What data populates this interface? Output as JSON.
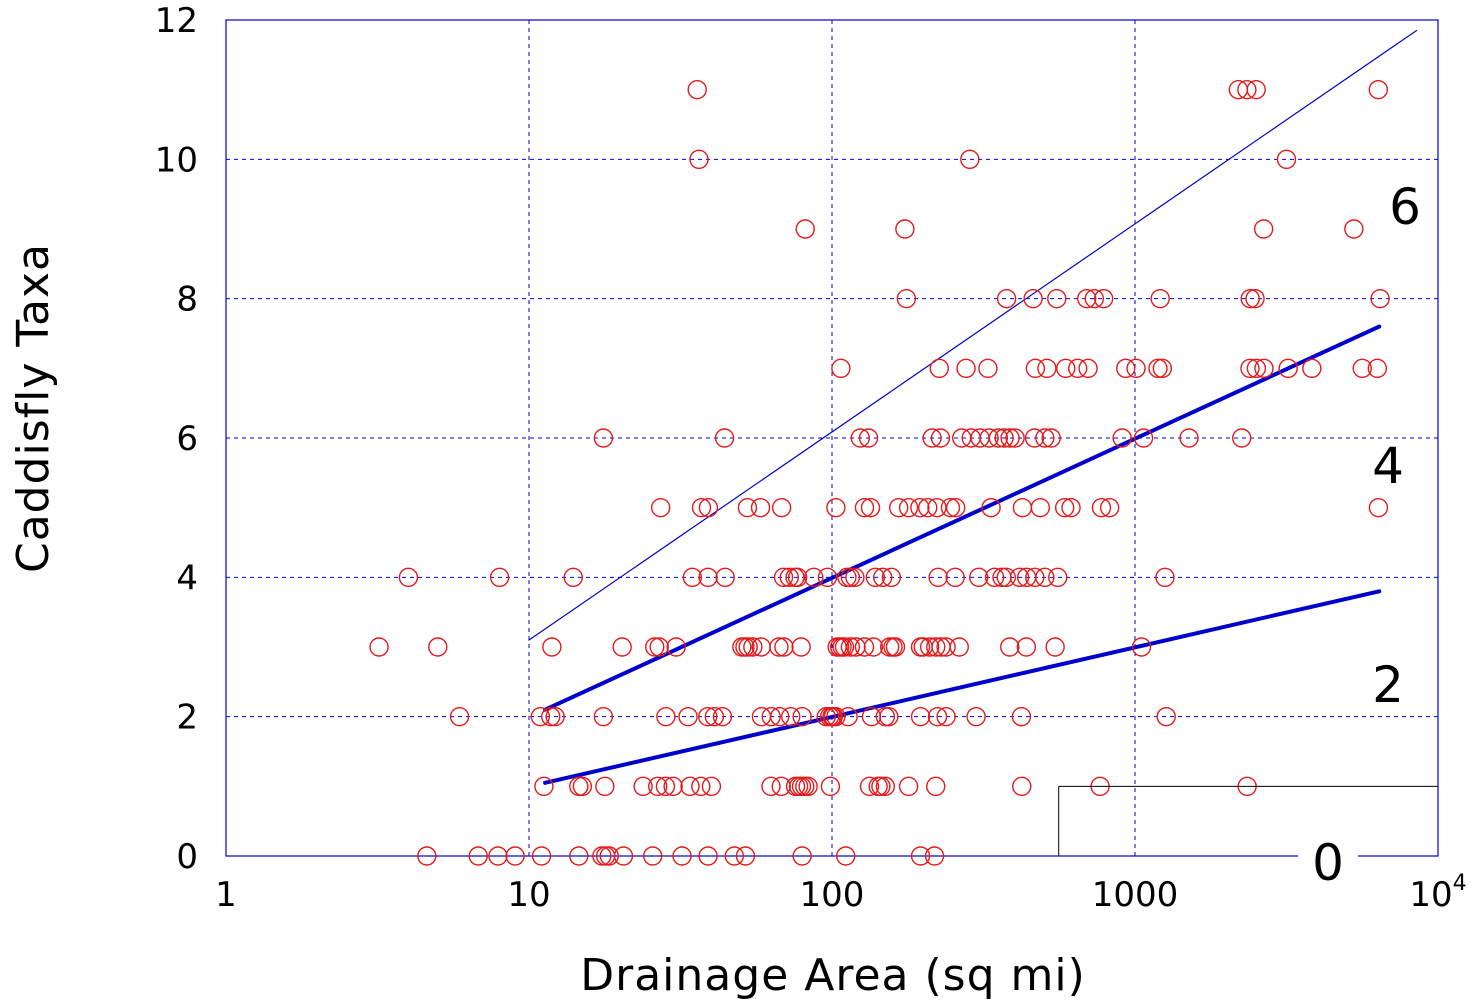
{
  "chart_data": {
    "type": "scatter",
    "xlabel": "Drainage Area (sq mi)",
    "ylabel": "Caddisfly Taxa",
    "x_scale": "log",
    "xlim": [
      1,
      10000
    ],
    "ylim": [
      0,
      12
    ],
    "x_ticks": [
      {
        "value": 1,
        "label": "1",
        "sup": ""
      },
      {
        "value": 10,
        "label": "10",
        "sup": ""
      },
      {
        "value": 100,
        "label": "100",
        "sup": ""
      },
      {
        "value": 1000,
        "label": "1000",
        "sup": ""
      },
      {
        "value": 10000,
        "label": "10",
        "sup": "4"
      }
    ],
    "y_ticks": [
      0,
      2,
      4,
      6,
      8,
      10,
      12
    ],
    "grid": true,
    "colors": {
      "points": "#e41a1c",
      "lines": "#0000cc",
      "grid": "#0000cc",
      "frame": "#0000cc"
    },
    "series": [
      {
        "marker": "open-circle",
        "points": [
          [
            4.6,
            0
          ],
          [
            6.8,
            0
          ],
          [
            7.9,
            0
          ],
          [
            9.0,
            0
          ],
          [
            11.0,
            0
          ],
          [
            14.6,
            0
          ],
          [
            17.4,
            0
          ],
          [
            17.9,
            0
          ],
          [
            18.4,
            0
          ],
          [
            20.5,
            0
          ],
          [
            25.6,
            0
          ],
          [
            32.0,
            0
          ],
          [
            39.0,
            0
          ],
          [
            47.6,
            0
          ],
          [
            51.8,
            0
          ],
          [
            79.7,
            0
          ],
          [
            111,
            0
          ],
          [
            196,
            0
          ],
          [
            218,
            0
          ],
          [
            11.2,
            1
          ],
          [
            14.6,
            1
          ],
          [
            15.0,
            1
          ],
          [
            17.8,
            1
          ],
          [
            23.8,
            1
          ],
          [
            26.6,
            1
          ],
          [
            28.2,
            1
          ],
          [
            29.9,
            1
          ],
          [
            34.0,
            1
          ],
          [
            36.9,
            1
          ],
          [
            40.0,
            1
          ],
          [
            62.9,
            1
          ],
          [
            68.0,
            1
          ],
          [
            75.8,
            1
          ],
          [
            77.6,
            1
          ],
          [
            79.3,
            1
          ],
          [
            81.3,
            1
          ],
          [
            83.4,
            1
          ],
          [
            98.8,
            1
          ],
          [
            133,
            1
          ],
          [
            142,
            1
          ],
          [
            145,
            1
          ],
          [
            150,
            1
          ],
          [
            179,
            1
          ],
          [
            220,
            1
          ],
          [
            423,
            1
          ],
          [
            767,
            1
          ],
          [
            2345,
            1
          ],
          [
            5.9,
            2
          ],
          [
            10.9,
            2
          ],
          [
            11.8,
            2
          ],
          [
            12.2,
            2
          ],
          [
            17.6,
            2
          ],
          [
            28.3,
            2
          ],
          [
            33.5,
            2
          ],
          [
            38.9,
            2
          ],
          [
            40.9,
            2
          ],
          [
            43.5,
            2
          ],
          [
            58.5,
            2
          ],
          [
            63.0,
            2
          ],
          [
            67.2,
            2
          ],
          [
            73.1,
            2
          ],
          [
            79.7,
            2
          ],
          [
            95.7,
            2
          ],
          [
            98.2,
            2
          ],
          [
            100,
            2
          ],
          [
            101,
            2
          ],
          [
            103,
            2
          ],
          [
            113,
            2
          ],
          [
            135,
            2
          ],
          [
            150,
            2
          ],
          [
            154,
            2
          ],
          [
            196,
            2
          ],
          [
            223,
            2
          ],
          [
            238,
            2
          ],
          [
            299,
            2
          ],
          [
            422,
            2
          ],
          [
            1268,
            2
          ],
          [
            3.2,
            3
          ],
          [
            5.0,
            3
          ],
          [
            11.9,
            3
          ],
          [
            20.3,
            3
          ],
          [
            26.0,
            3
          ],
          [
            26.9,
            3
          ],
          [
            30.6,
            3
          ],
          [
            50.4,
            3
          ],
          [
            51.6,
            3
          ],
          [
            52.9,
            3
          ],
          [
            54.8,
            3
          ],
          [
            58.4,
            3
          ],
          [
            66.8,
            3
          ],
          [
            69.4,
            3
          ],
          [
            79.1,
            3
          ],
          [
            104,
            3
          ],
          [
            106,
            3
          ],
          [
            108,
            3
          ],
          [
            110,
            3
          ],
          [
            115,
            3
          ],
          [
            120,
            3
          ],
          [
            128,
            3
          ],
          [
            137,
            3
          ],
          [
            155,
            3
          ],
          [
            159,
            3
          ],
          [
            162,
            3
          ],
          [
            196,
            3
          ],
          [
            200,
            3
          ],
          [
            210,
            3
          ],
          [
            220,
            3
          ],
          [
            229,
            3
          ],
          [
            238,
            3
          ],
          [
            263,
            3
          ],
          [
            386,
            3
          ],
          [
            438,
            3
          ],
          [
            545,
            3
          ],
          [
            1051,
            3
          ],
          [
            4.0,
            4
          ],
          [
            8.0,
            4
          ],
          [
            14.0,
            4
          ],
          [
            34.6,
            4
          ],
          [
            39.0,
            4
          ],
          [
            44.4,
            4
          ],
          [
            69.2,
            4
          ],
          [
            72.3,
            4
          ],
          [
            75.5,
            4
          ],
          [
            77.0,
            4
          ],
          [
            87.1,
            4
          ],
          [
            96.6,
            4
          ],
          [
            112,
            4
          ],
          [
            115,
            4
          ],
          [
            119,
            4
          ],
          [
            139,
            4
          ],
          [
            147,
            4
          ],
          [
            157,
            4
          ],
          [
            224,
            4
          ],
          [
            255,
            4
          ],
          [
            305,
            4
          ],
          [
            344,
            4
          ],
          [
            364,
            4
          ],
          [
            376,
            4
          ],
          [
            416,
            4
          ],
          [
            439,
            4
          ],
          [
            467,
            4
          ],
          [
            504,
            4
          ],
          [
            556,
            4
          ],
          [
            1256,
            4
          ],
          [
            27.2,
            5
          ],
          [
            37.1,
            5
          ],
          [
            39.1,
            5
          ],
          [
            52.6,
            5
          ],
          [
            58.1,
            5
          ],
          [
            68.2,
            5
          ],
          [
            103,
            5
          ],
          [
            128,
            5
          ],
          [
            134,
            5
          ],
          [
            166,
            5
          ],
          [
            179,
            5
          ],
          [
            195,
            5
          ],
          [
            207,
            5
          ],
          [
            222,
            5
          ],
          [
            246,
            5
          ],
          [
            256,
            5
          ],
          [
            335,
            5
          ],
          [
            425,
            5
          ],
          [
            487,
            5
          ],
          [
            586,
            5
          ],
          [
            615,
            5
          ],
          [
            775,
            5
          ],
          [
            825,
            5
          ],
          [
            6359,
            5
          ],
          [
            17.6,
            6
          ],
          [
            44.2,
            6
          ],
          [
            124,
            6
          ],
          [
            132,
            6
          ],
          [
            214,
            6
          ],
          [
            228,
            6
          ],
          [
            268,
            6
          ],
          [
            288,
            6
          ],
          [
            308,
            6
          ],
          [
            330,
            6
          ],
          [
            354,
            6
          ],
          [
            370,
            6
          ],
          [
            387,
            6
          ],
          [
            402,
            6
          ],
          [
            466,
            6
          ],
          [
            504,
            6
          ],
          [
            529,
            6
          ],
          [
            907,
            6
          ],
          [
            1067,
            6
          ],
          [
            1508,
            6
          ],
          [
            2250,
            6
          ],
          [
            107,
            7
          ],
          [
            226,
            7
          ],
          [
            277,
            7
          ],
          [
            327,
            7
          ],
          [
            469,
            7
          ],
          [
            512,
            7
          ],
          [
            591,
            7
          ],
          [
            647,
            7
          ],
          [
            700,
            7
          ],
          [
            932,
            7
          ],
          [
            1008,
            7
          ],
          [
            1191,
            7
          ],
          [
            1231,
            7
          ],
          [
            2396,
            7
          ],
          [
            2515,
            7
          ],
          [
            2665,
            7
          ],
          [
            3203,
            7
          ],
          [
            3834,
            7
          ],
          [
            5623,
            7
          ],
          [
            6307,
            7
          ],
          [
            176,
            8
          ],
          [
            377,
            8
          ],
          [
            461,
            8
          ],
          [
            552,
            8
          ],
          [
            693,
            8
          ],
          [
            734,
            8
          ],
          [
            788,
            8
          ],
          [
            1211,
            8
          ],
          [
            2400,
            8
          ],
          [
            2490,
            8
          ],
          [
            6442,
            8
          ],
          [
            81.6,
            9
          ],
          [
            174,
            9
          ],
          [
            2658,
            9
          ],
          [
            5276,
            9
          ],
          [
            285,
            10
          ],
          [
            36.4,
            10
          ],
          [
            3162,
            10
          ],
          [
            35.9,
            11
          ],
          [
            2193,
            11
          ],
          [
            2340,
            11
          ],
          [
            2511,
            11
          ],
          [
            6353,
            11
          ]
        ]
      }
    ],
    "reference_lines": [
      {
        "x": [
          10,
          8500
        ],
        "y": [
          3.1,
          11.85
        ],
        "weight": "thin"
      },
      {
        "x": [
          11.3,
          6400
        ],
        "y": [
          2.1,
          7.6
        ],
        "weight": "thick"
      },
      {
        "x": [
          11.3,
          6400
        ],
        "y": [
          1.05,
          3.8
        ],
        "weight": "thick"
      }
    ],
    "zone_labels": [
      "6",
      "4",
      "2",
      "0"
    ]
  }
}
